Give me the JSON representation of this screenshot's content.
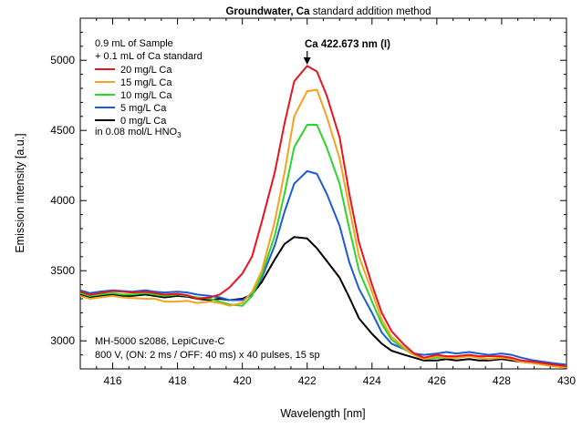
{
  "chart_data": {
    "type": "line",
    "title": {
      "bold": "Groundwater, Ca",
      "rest": " standard addition method"
    },
    "xlabel": "Wavelength [nm]",
    "ylabel": "Emission intensity [a.u.]",
    "xlim": [
      415,
      430
    ],
    "ylim": [
      2800,
      5300
    ],
    "xticks": [
      416,
      418,
      420,
      422,
      424,
      426,
      428,
      430
    ],
    "yticks": [
      3000,
      3500,
      4000,
      4500,
      5000
    ],
    "grid": false,
    "legend_position": "top-left",
    "legend_header": [
      "0.9 mL of Sample",
      "+ 0.1 mL of Ca standard"
    ],
    "legend_footer": {
      "main": "in 0.08 mol/L HNO",
      "sub": "3"
    },
    "peak_annotation": {
      "label": "Ca 422.673 nm (I)",
      "x": 422.0,
      "y": 5000
    },
    "instrument_note": [
      "MH-5000 s2086, LepiCuve-C",
      "800 V, (ON: 2 ms / OFF: 40 ms) x 40 pulses, 15 sp"
    ],
    "x": [
      415.0,
      415.3,
      415.6,
      416.0,
      416.3,
      416.6,
      417.0,
      417.3,
      417.6,
      418.0,
      418.3,
      418.6,
      419.0,
      419.3,
      419.6,
      420.0,
      420.3,
      420.6,
      421.0,
      421.3,
      421.6,
      422.0,
      422.3,
      422.6,
      423.0,
      423.3,
      423.6,
      424.0,
      424.3,
      424.6,
      425.0,
      425.3,
      425.6,
      426.0,
      426.3,
      426.6,
      427.0,
      427.3,
      427.6,
      428.0,
      428.3,
      428.6,
      429.0,
      429.3,
      429.6,
      430.0
    ],
    "series": [
      {
        "name": "20 mg/L Ca",
        "color": "#e8141e",
        "values": [
          3350,
          3330,
          3340,
          3355,
          3350,
          3345,
          3350,
          3340,
          3330,
          3335,
          3325,
          3300,
          3310,
          3330,
          3380,
          3480,
          3600,
          3850,
          4200,
          4550,
          4850,
          4960,
          4920,
          4750,
          4450,
          4050,
          3700,
          3400,
          3200,
          3070,
          2970,
          2910,
          2880,
          2900,
          2890,
          2890,
          2900,
          2890,
          2890,
          2890,
          2880,
          2860,
          2850,
          2840,
          2830,
          2820
        ]
      },
      {
        "name": "15 mg/L Ca",
        "color": "#f5a21e",
        "values": [
          3320,
          3300,
          3310,
          3320,
          3310,
          3305,
          3300,
          3300,
          3280,
          3280,
          3285,
          3270,
          3280,
          3270,
          3250,
          3270,
          3350,
          3500,
          3850,
          4200,
          4600,
          4780,
          4790,
          4600,
          4300,
          3950,
          3600,
          3350,
          3150,
          3030,
          2950,
          2900,
          2870,
          2890,
          2880,
          2880,
          2890,
          2880,
          2870,
          2880,
          2870,
          2850,
          2840,
          2830,
          2820,
          2810
        ]
      },
      {
        "name": "10 mg/L Ca",
        "color": "#2ed42e",
        "values": [
          3340,
          3320,
          3330,
          3340,
          3330,
          3330,
          3340,
          3330,
          3320,
          3330,
          3320,
          3310,
          3300,
          3280,
          3260,
          3250,
          3320,
          3470,
          3750,
          4050,
          4380,
          4540,
          4540,
          4380,
          4120,
          3800,
          3500,
          3280,
          3120,
          3010,
          2940,
          2900,
          2870,
          2880,
          2880,
          2880,
          2890,
          2880,
          2870,
          2880,
          2870,
          2850,
          2840,
          2830,
          2820,
          2810
        ]
      },
      {
        "name": "5 mg/L Ca",
        "color": "#1e5ad6",
        "values": [
          3360,
          3340,
          3350,
          3360,
          3355,
          3350,
          3360,
          3350,
          3345,
          3350,
          3345,
          3330,
          3320,
          3310,
          3290,
          3290,
          3330,
          3450,
          3680,
          3920,
          4120,
          4210,
          4190,
          4050,
          3820,
          3560,
          3370,
          3200,
          3060,
          2980,
          2940,
          2910,
          2900,
          2910,
          2920,
          2910,
          2920,
          2910,
          2900,
          2910,
          2900,
          2880,
          2860,
          2850,
          2840,
          2830
        ]
      },
      {
        "name": "0 mg/L Ca",
        "color": "#000000",
        "values": [
          3330,
          3310,
          3320,
          3330,
          3320,
          3320,
          3330,
          3320,
          3310,
          3320,
          3315,
          3300,
          3290,
          3300,
          3290,
          3300,
          3330,
          3420,
          3580,
          3690,
          3740,
          3730,
          3660,
          3570,
          3450,
          3310,
          3160,
          3050,
          2980,
          2930,
          2900,
          2880,
          2860,
          2860,
          2870,
          2860,
          2870,
          2860,
          2860,
          2870,
          2860,
          2850,
          2840,
          2830,
          2820,
          2810
        ]
      }
    ]
  }
}
